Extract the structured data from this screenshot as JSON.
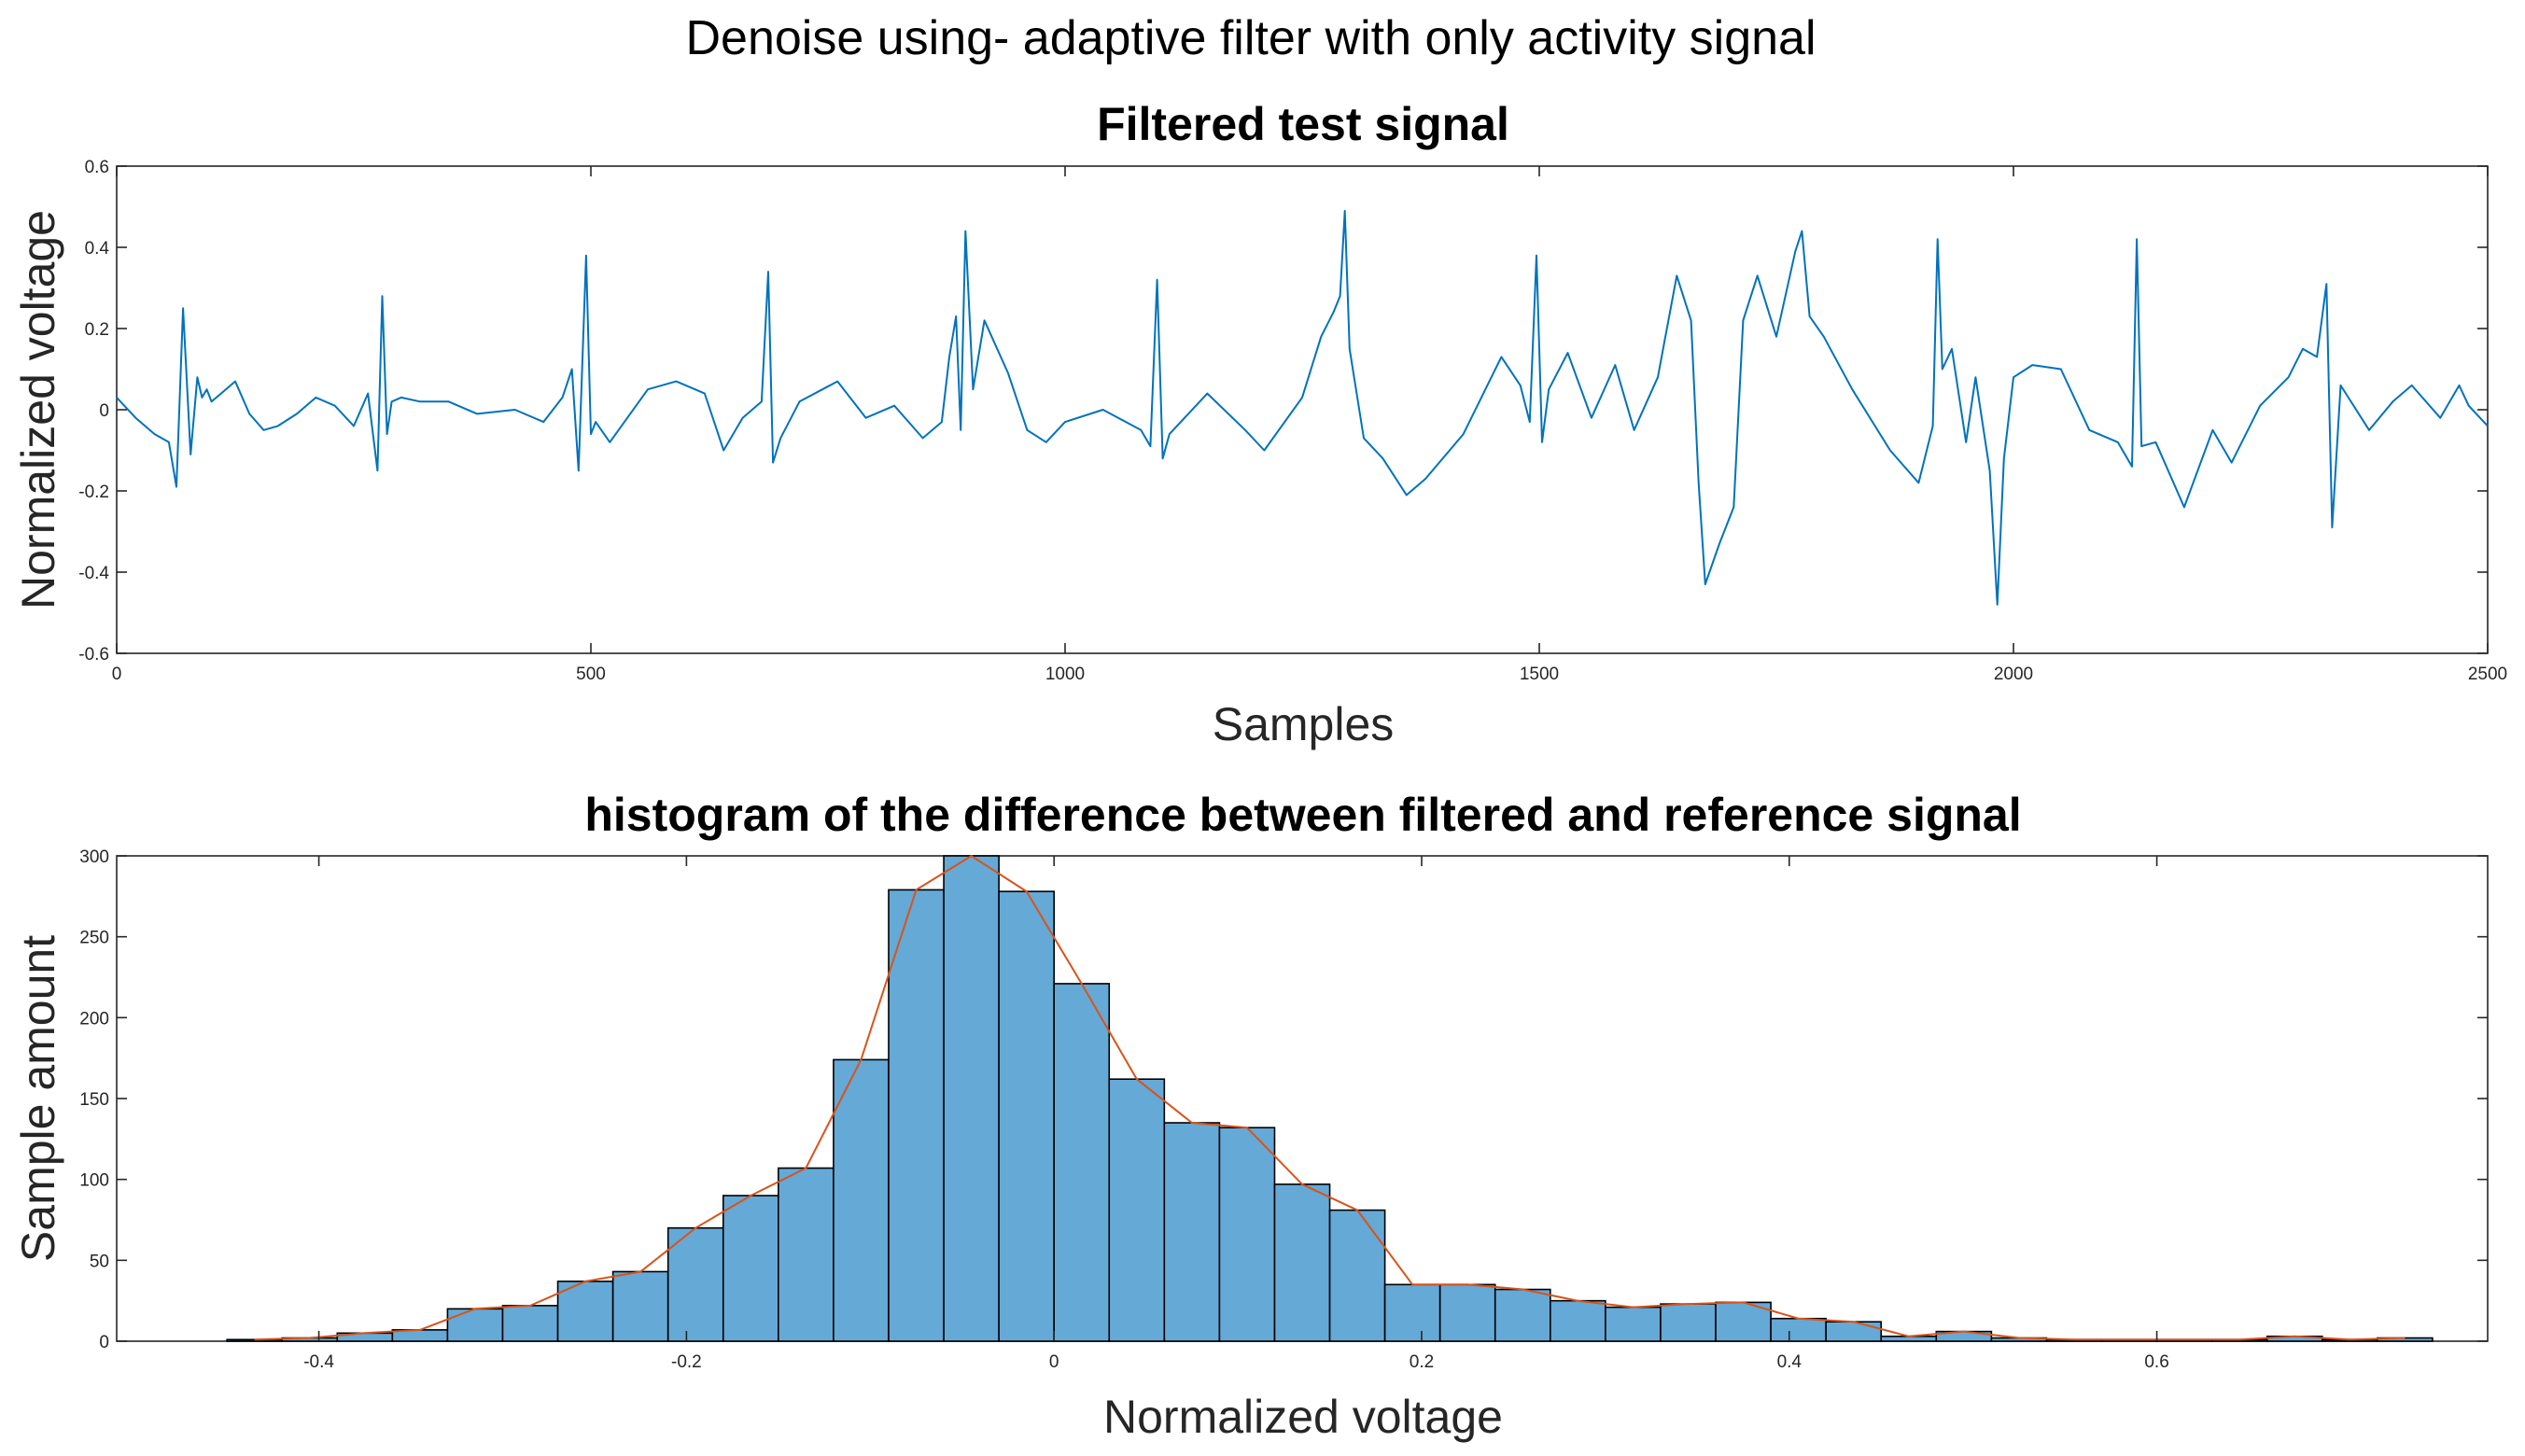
{
  "suptitle": "Denoise using- adaptive filter with only activity signal",
  "colors": {
    "signal": "#0072BD",
    "bar_fill": "#65A9D7",
    "bar_edge": "#000000",
    "fit": "#D95319"
  },
  "chart_data": [
    {
      "type": "line",
      "title": "Filtered test signal",
      "xlabel": "Samples",
      "ylabel": "Normalized voltage",
      "xlim": [
        0,
        2500
      ],
      "ylim": [
        -0.6,
        0.6
      ],
      "xticks": [
        0,
        500,
        1000,
        1500,
        2000,
        2500
      ],
      "xtick_labels": [
        "0",
        "500",
        "1000",
        "1500",
        "2000",
        "2500"
      ],
      "yticks": [
        -0.6,
        -0.4,
        -0.2,
        0,
        0.2,
        0.4,
        0.6
      ],
      "ytick_labels": [
        "-0.6",
        "-0.4",
        "-0.2",
        "0",
        "0.2",
        "0.4",
        "0.6"
      ],
      "grid": false,
      "series": [
        {
          "name": "Filtered test signal",
          "x": [
            0,
            20,
            40,
            55,
            63,
            70,
            78,
            85,
            90,
            95,
            100,
            110,
            125,
            140,
            155,
            170,
            190,
            210,
            230,
            250,
            265,
            275,
            280,
            285,
            290,
            300,
            320,
            350,
            380,
            420,
            450,
            470,
            480,
            487,
            495,
            500,
            505,
            520,
            560,
            590,
            620,
            640,
            660,
            680,
            687,
            692,
            700,
            720,
            760,
            790,
            820,
            850,
            870,
            878,
            885,
            890,
            895,
            903,
            915,
            940,
            960,
            980,
            1000,
            1040,
            1080,
            1090,
            1097,
            1103,
            1110,
            1150,
            1190,
            1210,
            1250,
            1270,
            1283,
            1290,
            1295,
            1300,
            1315,
            1335,
            1360,
            1380,
            1420,
            1460,
            1480,
            1490,
            1497,
            1503,
            1510,
            1530,
            1555,
            1580,
            1600,
            1625,
            1645,
            1660,
            1668,
            1675,
            1690,
            1705,
            1715,
            1730,
            1750,
            1770,
            1777,
            1785,
            1800,
            1830,
            1870,
            1900,
            1915,
            1920,
            1925,
            1935,
            1950,
            1960,
            1975,
            1983,
            1990,
            2000,
            2020,
            2050,
            2080,
            2110,
            2125,
            2130,
            2135,
            2150,
            2180,
            2210,
            2230,
            2260,
            2290,
            2305,
            2320,
            2330,
            2336,
            2345,
            2375,
            2400,
            2420,
            2450,
            2470,
            2480,
            2500
          ],
          "y": [
            0.03,
            -0.02,
            -0.06,
            -0.08,
            -0.19,
            0.25,
            -0.11,
            0.08,
            0.03,
            0.05,
            0.02,
            0.04,
            0.07,
            -0.01,
            -0.05,
            -0.04,
            -0.01,
            0.03,
            0.01,
            -0.04,
            0.04,
            -0.15,
            0.28,
            -0.06,
            0.02,
            0.03,
            0.02,
            0.02,
            -0.01,
            0.0,
            -0.03,
            0.03,
            0.1,
            -0.15,
            0.38,
            -0.06,
            -0.03,
            -0.08,
            0.05,
            0.07,
            0.04,
            -0.1,
            -0.02,
            0.02,
            0.34,
            -0.13,
            -0.07,
            0.02,
            0.07,
            -0.02,
            0.01,
            -0.07,
            -0.03,
            0.13,
            0.23,
            -0.05,
            0.44,
            0.05,
            0.22,
            0.09,
            -0.05,
            -0.08,
            -0.03,
            0.0,
            -0.05,
            -0.09,
            0.32,
            -0.12,
            -0.06,
            0.04,
            -0.05,
            -0.1,
            0.03,
            0.18,
            0.24,
            0.28,
            0.49,
            0.15,
            -0.07,
            -0.12,
            -0.21,
            -0.17,
            -0.06,
            0.13,
            0.06,
            -0.03,
            0.38,
            -0.08,
            0.05,
            0.14,
            -0.02,
            0.11,
            -0.05,
            0.08,
            0.33,
            0.22,
            -0.18,
            -0.43,
            -0.33,
            -0.24,
            0.22,
            0.33,
            0.18,
            0.39,
            0.44,
            0.23,
            0.18,
            0.05,
            -0.1,
            -0.18,
            -0.04,
            0.42,
            0.1,
            0.15,
            -0.08,
            0.08,
            -0.15,
            -0.48,
            -0.12,
            0.08,
            0.11,
            0.1,
            -0.05,
            -0.08,
            -0.14,
            0.42,
            -0.09,
            -0.08,
            -0.24,
            -0.05,
            -0.13,
            0.01,
            0.08,
            0.15,
            0.13,
            0.31,
            -0.29,
            0.06,
            -0.05,
            0.02,
            0.06,
            -0.02,
            0.06,
            0.01,
            -0.04
          ]
        }
      ]
    },
    {
      "type": "bar",
      "subtype": "histogram",
      "title": "histogram of the difference between filtered and reference signal",
      "xlabel": "Normalized voltage",
      "ylabel": "Sample amount",
      "xlim": [
        -0.51,
        0.78
      ],
      "ylim": [
        0,
        300
      ],
      "xticks": [
        -0.4,
        -0.2,
        0,
        0.2,
        0.4,
        0.6
      ],
      "xtick_labels": [
        "-0.4",
        "-0.2",
        "0",
        "0.2",
        "0.4",
        "0.6"
      ],
      "yticks": [
        0,
        50,
        100,
        150,
        200,
        250,
        300
      ],
      "ytick_labels": [
        "0",
        "50",
        "100",
        "150",
        "200",
        "250",
        "300"
      ],
      "grid": false,
      "bin_start": -0.45,
      "bin_width": 0.03,
      "counts": [
        1,
        2,
        5,
        7,
        20,
        22,
        37,
        43,
        70,
        90,
        107,
        174,
        279,
        300,
        278,
        221,
        162,
        135,
        132,
        97,
        81,
        35,
        35,
        32,
        25,
        21,
        23,
        24,
        14,
        12,
        3,
        6,
        2,
        1,
        1,
        1,
        1,
        3,
        1,
        2
      ],
      "series": [
        {
          "name": "histogram counts",
          "kind": "bars"
        },
        {
          "name": "bin-count polyline",
          "kind": "line"
        }
      ]
    }
  ]
}
